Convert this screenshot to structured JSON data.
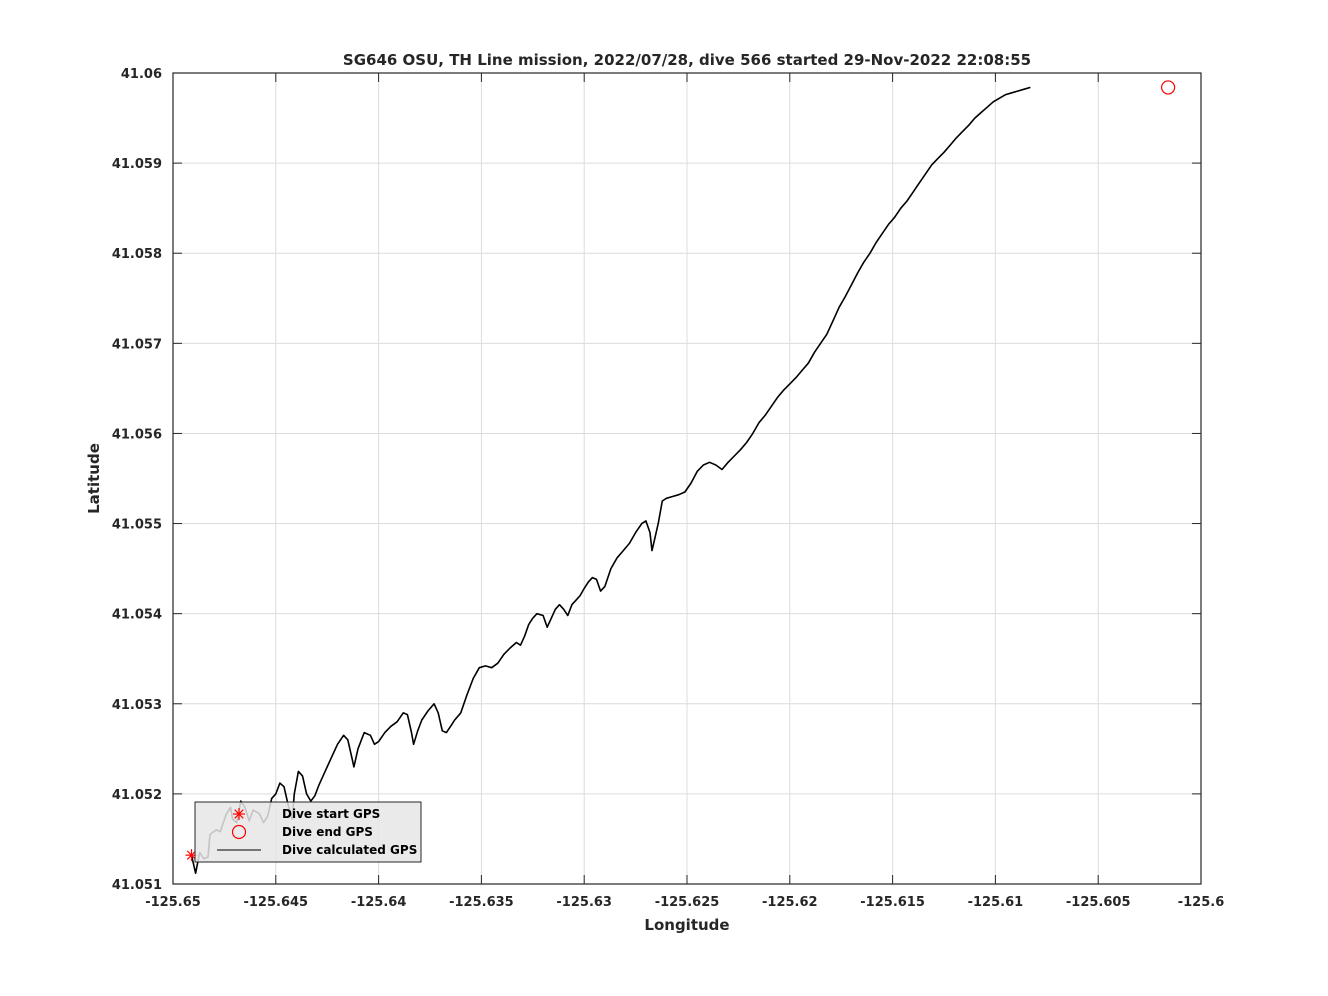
{
  "chart_data": {
    "type": "line",
    "title": "SG646 OSU, TH Line mission, 2022/07/28, dive 566 started 29-Nov-2022 22:08:55",
    "xlabel": "Longitude",
    "ylabel": "Latitude",
    "xlim": [
      -125.65,
      -125.6
    ],
    "ylim": [
      41.051,
      41.06
    ],
    "xticks": [
      -125.65,
      -125.645,
      -125.64,
      -125.635,
      -125.63,
      -125.625,
      -125.62,
      -125.615,
      -125.61,
      -125.605,
      -125.6
    ],
    "xtick_labels": [
      "-125.65",
      "-125.645",
      "-125.64",
      "-125.635",
      "-125.63",
      "-125.625",
      "-125.62",
      "-125.615",
      "-125.61",
      "-125.605",
      "-125.6"
    ],
    "yticks": [
      41.051,
      41.052,
      41.053,
      41.054,
      41.055,
      41.056,
      41.057,
      41.058,
      41.059,
      41.06
    ],
    "ytick_labels": [
      "41.051",
      "41.052",
      "41.053",
      "41.054",
      "41.055",
      "41.056",
      "41.057",
      "41.058",
      "41.059",
      "41.06"
    ],
    "grid": true,
    "legend_position": "bottom-left",
    "legend": [
      {
        "label": "Dive start GPS",
        "marker": "asterisk",
        "color": "#ff0000"
      },
      {
        "label": "Dive end GPS",
        "marker": "circle",
        "color": "#ff0000"
      },
      {
        "label": "Dive calculated GPS",
        "marker": "line",
        "color": "#000000"
      }
    ],
    "series": [
      {
        "label": "Dive start GPS",
        "kind": "marker",
        "marker": "asterisk",
        "color": "#ff0000",
        "points": [
          [
            -125.6491,
            41.05132
          ]
        ]
      },
      {
        "label": "Dive end GPS",
        "kind": "marker",
        "marker": "circle",
        "color": "#ff0000",
        "points": [
          [
            -125.6016,
            41.05984
          ]
        ]
      },
      {
        "label": "Dive calculated GPS",
        "kind": "line",
        "color": "#000000",
        "points": [
          [
            -125.6491,
            41.05132
          ],
          [
            -125.6489,
            41.05112
          ],
          [
            -125.6487,
            41.05135
          ],
          [
            -125.6485,
            41.05128
          ],
          [
            -125.6483,
            41.0513
          ],
          [
            -125.6482,
            41.05155
          ],
          [
            -125.6479,
            41.0516
          ],
          [
            -125.6477,
            41.05158
          ],
          [
            -125.6476,
            41.05165
          ],
          [
            -125.6474,
            41.05178
          ],
          [
            -125.6472,
            41.05185
          ],
          [
            -125.6471,
            41.05172
          ],
          [
            -125.6469,
            41.05168
          ],
          [
            -125.6467,
            41.05192
          ],
          [
            -125.6465,
            41.05185
          ],
          [
            -125.6463,
            41.0517
          ],
          [
            -125.6461,
            41.05182
          ],
          [
            -125.6458,
            41.05178
          ],
          [
            -125.6456,
            41.05168
          ],
          [
            -125.6454,
            41.05175
          ],
          [
            -125.6452,
            41.05195
          ],
          [
            -125.645,
            41.052
          ],
          [
            -125.6448,
            41.05212
          ],
          [
            -125.6446,
            41.05208
          ],
          [
            -125.6444,
            41.05188
          ],
          [
            -125.6442,
            41.05172
          ],
          [
            -125.6441,
            41.052
          ],
          [
            -125.6439,
            41.05225
          ],
          [
            -125.6437,
            41.0522
          ],
          [
            -125.6435,
            41.052
          ],
          [
            -125.6433,
            41.05192
          ],
          [
            -125.6431,
            41.05198
          ],
          [
            -125.6429,
            41.0521
          ],
          [
            -125.6426,
            41.05225
          ],
          [
            -125.6423,
            41.0524
          ],
          [
            -125.642,
            41.05255
          ],
          [
            -125.6417,
            41.05265
          ],
          [
            -125.6415,
            41.0526
          ],
          [
            -125.6413,
            41.0524
          ],
          [
            -125.6412,
            41.0523
          ],
          [
            -125.641,
            41.0525
          ],
          [
            -125.6407,
            41.05268
          ],
          [
            -125.6404,
            41.05265
          ],
          [
            -125.6402,
            41.05255
          ],
          [
            -125.64,
            41.05258
          ],
          [
            -125.6397,
            41.05268
          ],
          [
            -125.6394,
            41.05275
          ],
          [
            -125.6391,
            41.0528
          ],
          [
            -125.6388,
            41.0529
          ],
          [
            -125.6386,
            41.05288
          ],
          [
            -125.6384,
            41.05268
          ],
          [
            -125.6383,
            41.05255
          ],
          [
            -125.6381,
            41.0527
          ],
          [
            -125.6379,
            41.05282
          ],
          [
            -125.6376,
            41.05292
          ],
          [
            -125.6373,
            41.053
          ],
          [
            -125.6371,
            41.0529
          ],
          [
            -125.6369,
            41.0527
          ],
          [
            -125.6367,
            41.05268
          ],
          [
            -125.6365,
            41.05275
          ],
          [
            -125.6363,
            41.05282
          ],
          [
            -125.636,
            41.0529
          ],
          [
            -125.6357,
            41.0531
          ],
          [
            -125.6354,
            41.05328
          ],
          [
            -125.6351,
            41.0534
          ],
          [
            -125.6348,
            41.05342
          ],
          [
            -125.6345,
            41.0534
          ],
          [
            -125.6342,
            41.05345
          ],
          [
            -125.6339,
            41.05355
          ],
          [
            -125.6336,
            41.05362
          ],
          [
            -125.6333,
            41.05368
          ],
          [
            -125.6331,
            41.05365
          ],
          [
            -125.6329,
            41.05375
          ],
          [
            -125.6327,
            41.05388
          ],
          [
            -125.6325,
            41.05395
          ],
          [
            -125.6323,
            41.054
          ],
          [
            -125.632,
            41.05398
          ],
          [
            -125.6318,
            41.05385
          ],
          [
            -125.6316,
            41.05395
          ],
          [
            -125.6314,
            41.05405
          ],
          [
            -125.6312,
            41.0541
          ],
          [
            -125.631,
            41.05405
          ],
          [
            -125.6308,
            41.05398
          ],
          [
            -125.6306,
            41.0541
          ],
          [
            -125.6304,
            41.05415
          ],
          [
            -125.6302,
            41.0542
          ],
          [
            -125.63,
            41.05428
          ],
          [
            -125.6298,
            41.05435
          ],
          [
            -125.6296,
            41.0544
          ],
          [
            -125.6294,
            41.05438
          ],
          [
            -125.6292,
            41.05425
          ],
          [
            -125.629,
            41.0543
          ],
          [
            -125.6287,
            41.0545
          ],
          [
            -125.6284,
            41.05462
          ],
          [
            -125.6281,
            41.0547
          ],
          [
            -125.6278,
            41.05478
          ],
          [
            -125.6275,
            41.0549
          ],
          [
            -125.6272,
            41.055
          ],
          [
            -125.627,
            41.05503
          ],
          [
            -125.6268,
            41.0549
          ],
          [
            -125.6267,
            41.0547
          ],
          [
            -125.6266,
            41.0548
          ],
          [
            -125.6264,
            41.055
          ],
          [
            -125.6262,
            41.05525
          ],
          [
            -125.626,
            41.05528
          ],
          [
            -125.6257,
            41.0553
          ],
          [
            -125.6254,
            41.05532
          ],
          [
            -125.6251,
            41.05535
          ],
          [
            -125.6248,
            41.05545
          ],
          [
            -125.6245,
            41.05558
          ],
          [
            -125.6242,
            41.05565
          ],
          [
            -125.6239,
            41.05568
          ],
          [
            -125.6236,
            41.05565
          ],
          [
            -125.6233,
            41.0556
          ],
          [
            -125.623,
            41.05568
          ],
          [
            -125.6227,
            41.05575
          ],
          [
            -125.6224,
            41.05582
          ],
          [
            -125.6221,
            41.0559
          ],
          [
            -125.6218,
            41.056
          ],
          [
            -125.6215,
            41.05612
          ],
          [
            -125.6212,
            41.0562
          ],
          [
            -125.6209,
            41.0563
          ],
          [
            -125.6206,
            41.0564
          ],
          [
            -125.6203,
            41.05648
          ],
          [
            -125.62,
            41.05655
          ],
          [
            -125.6197,
            41.05662
          ],
          [
            -125.6194,
            41.0567
          ],
          [
            -125.6191,
            41.05678
          ],
          [
            -125.6188,
            41.0569
          ],
          [
            -125.6185,
            41.057
          ],
          [
            -125.6182,
            41.0571
          ],
          [
            -125.6179,
            41.05725
          ],
          [
            -125.6176,
            41.0574
          ],
          [
            -125.6173,
            41.05752
          ],
          [
            -125.617,
            41.05765
          ],
          [
            -125.6167,
            41.05778
          ],
          [
            -125.6164,
            41.0579
          ],
          [
            -125.6161,
            41.058
          ],
          [
            -125.6158,
            41.05812
          ],
          [
            -125.6155,
            41.05822
          ],
          [
            -125.6152,
            41.05832
          ],
          [
            -125.6149,
            41.0584
          ],
          [
            -125.6146,
            41.0585
          ],
          [
            -125.6143,
            41.05858
          ],
          [
            -125.614,
            41.05868
          ],
          [
            -125.6137,
            41.05878
          ],
          [
            -125.6134,
            41.05888
          ],
          [
            -125.6131,
            41.05898
          ],
          [
            -125.6128,
            41.05905
          ],
          [
            -125.6125,
            41.05912
          ],
          [
            -125.6122,
            41.0592
          ],
          [
            -125.6119,
            41.05928
          ],
          [
            -125.6116,
            41.05935
          ],
          [
            -125.6113,
            41.05942
          ],
          [
            -125.611,
            41.0595
          ],
          [
            -125.6107,
            41.05956
          ],
          [
            -125.6104,
            41.05962
          ],
          [
            -125.6101,
            41.05968
          ],
          [
            -125.6098,
            41.05972
          ],
          [
            -125.6095,
            41.05976
          ],
          [
            -125.6092,
            41.05978
          ],
          [
            -125.6089,
            41.0598
          ],
          [
            -125.6086,
            41.05982
          ],
          [
            -125.6083,
            41.05984
          ]
        ]
      }
    ]
  }
}
